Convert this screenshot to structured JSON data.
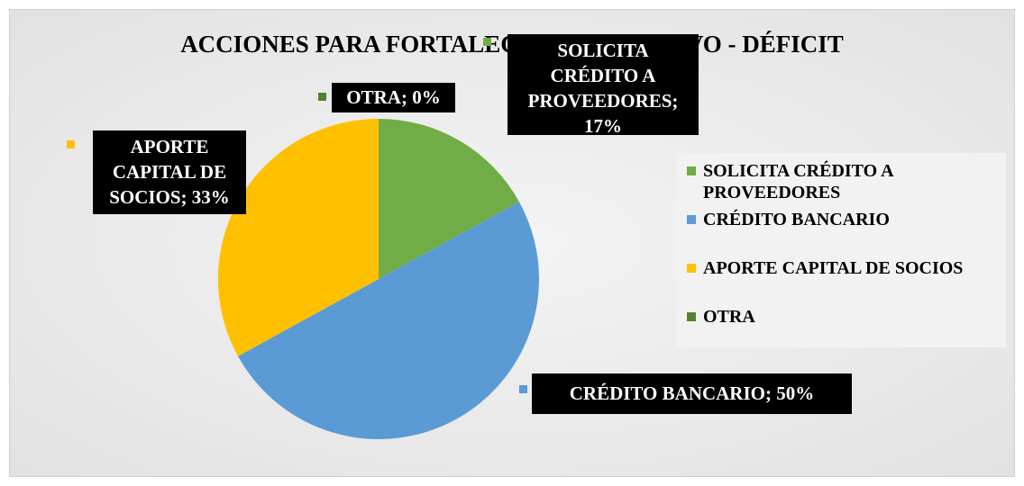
{
  "chart_data": {
    "type": "pie",
    "title": "ACCIONES PARA FORTALECER EL EFECTIVO - DÉFICIT",
    "categories": [
      "SOLICITA CRÉDITO A PROVEEDORES",
      "CRÉDITO BANCARIO",
      "APORTE CAPITAL DE SOCIOS",
      "OTRA"
    ],
    "values": [
      17,
      50,
      33,
      0
    ],
    "value_labels": [
      "SOLICITA CRÉDITO A PROVEEDORES; 17%",
      "CRÉDITO BANCARIO; 50%",
      "APORTE CAPITAL DE SOCIOS; 33%",
      "OTRA; 0%"
    ],
    "colors": [
      "#70ad47",
      "#5b9bd5",
      "#ffc000",
      "#548235"
    ],
    "legend": "right"
  }
}
